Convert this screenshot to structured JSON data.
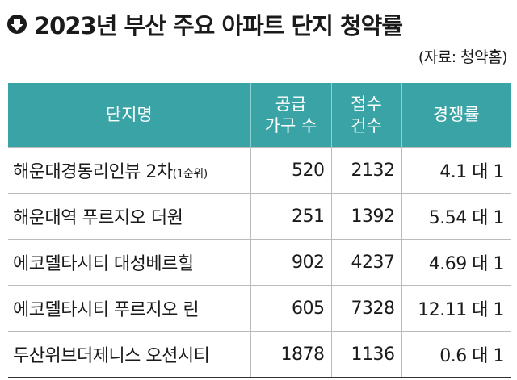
{
  "header": {
    "title": "2023년 부산 주요 아파트 단지 청약률",
    "source": "(자료: 청약홈)"
  },
  "table": {
    "columns": [
      [
        "단지명"
      ],
      [
        "공급",
        "가구 수"
      ],
      [
        "접수",
        "건수"
      ],
      [
        "경쟁률"
      ]
    ],
    "rows": [
      {
        "name": "해운대경동리인뷰 2차",
        "note": "(1순위)",
        "supply": 520,
        "applications": 2132,
        "ratio": "4.1 대 1"
      },
      {
        "name": "해운대역 푸르지오 더원",
        "supply": 251,
        "applications": 1392,
        "ratio": "5.54 대 1"
      },
      {
        "name": "에코델타시티 대성베르힐",
        "supply": 902,
        "applications": 4237,
        "ratio": "4.69 대 1"
      },
      {
        "name": "에코델타시티 푸르지오 린",
        "supply": 605,
        "applications": 7328,
        "ratio": "12.11 대 1"
      },
      {
        "name": "두산위브더제니스 오션시티",
        "supply": 1878,
        "applications": 1136,
        "ratio": "0.6 대 1"
      }
    ]
  }
}
